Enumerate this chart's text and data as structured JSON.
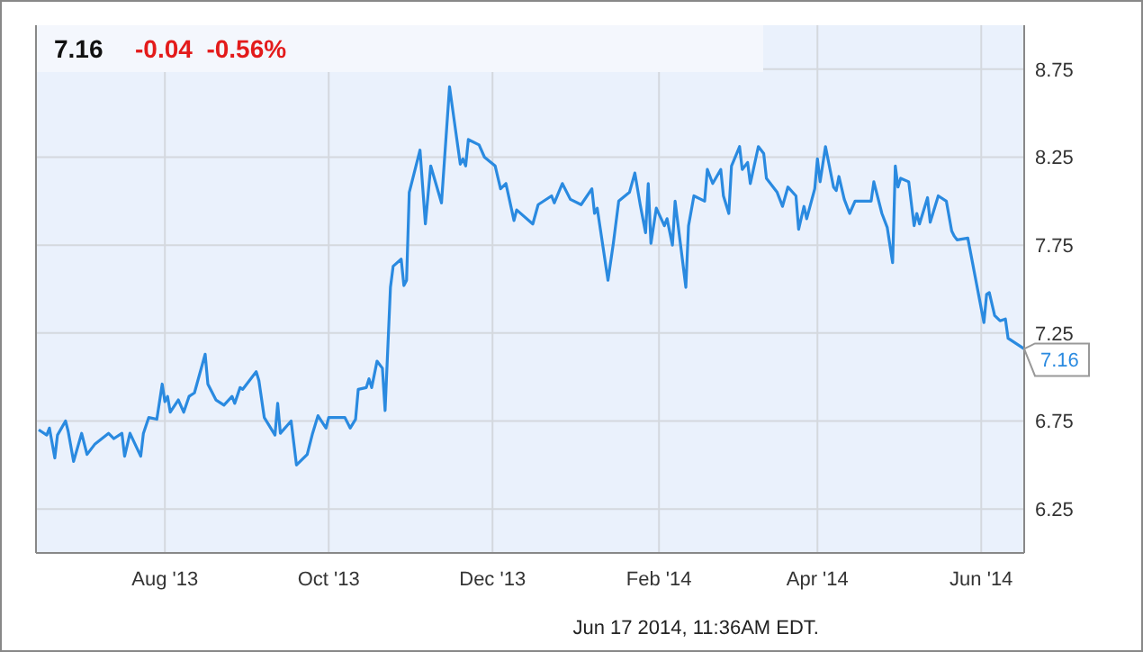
{
  "chart_data": {
    "type": "line",
    "title": "7.16",
    "subtitle": "-0.04  -0.56%",
    "annotations": [
      {
        "text": "7.16",
        "x": "2014-06-17",
        "y": 7.16
      },
      "Jun 17 2014, 11:36AM EDT."
    ],
    "x": [
      "2013-06-15",
      "2013-06-18",
      "2013-06-19",
      "2013-06-21",
      "2013-06-22",
      "2013-06-25",
      "2013-06-26",
      "2013-06-28",
      "2013-07-01",
      "2013-07-03",
      "2013-07-06",
      "2013-07-11",
      "2013-07-13",
      "2013-07-16",
      "2013-07-17",
      "2013-07-19",
      "2013-07-23",
      "2013-07-24",
      "2013-07-26",
      "2013-07-29",
      "2013-07-31",
      "2013-08-01",
      "2013-08-02",
      "2013-08-03",
      "2013-08-06",
      "2013-08-08",
      "2013-08-10",
      "2013-08-12",
      "2013-08-16",
      "2013-08-17",
      "2013-08-20",
      "2013-08-23",
      "2013-08-26",
      "2013-08-27",
      "2013-08-29",
      "2013-08-30",
      "2013-09-04",
      "2013-09-05",
      "2013-09-07",
      "2013-09-11",
      "2013-09-12",
      "2013-09-13",
      "2013-09-17",
      "2013-09-19",
      "2013-09-23",
      "2013-09-25",
      "2013-09-27",
      "2013-09-30",
      "2013-10-01",
      "2013-10-07",
      "2013-10-09",
      "2013-10-11",
      "2013-10-12",
      "2013-10-15",
      "2013-10-16",
      "2013-10-17",
      "2013-10-19",
      "2013-10-21",
      "2013-10-22",
      "2013-10-24",
      "2013-10-25",
      "2013-10-28",
      "2013-10-29",
      "2013-10-30",
      "2013-10-31",
      "2013-11-04",
      "2013-11-06",
      "2013-11-08",
      "2013-11-12",
      "2013-11-15",
      "2013-11-19",
      "2013-11-20",
      "2013-11-21",
      "2013-11-22",
      "2013-11-26",
      "2013-11-28",
      "2013-12-02",
      "2013-12-04",
      "2013-12-06",
      "2013-12-09",
      "2013-12-10",
      "2013-12-16",
      "2013-12-18",
      "2013-12-23",
      "2013-12-24",
      "2013-12-27",
      "2013-12-30",
      "2014-01-03",
      "2014-01-07",
      "2014-01-08",
      "2014-01-09",
      "2014-01-13",
      "2014-01-15",
      "2014-01-17",
      "2014-01-21",
      "2014-01-23",
      "2014-01-25",
      "2014-01-27",
      "2014-01-28",
      "2014-01-29",
      "2014-01-31",
      "2014-02-03",
      "2014-02-04",
      "2014-02-06",
      "2014-02-07",
      "2014-02-11",
      "2014-02-12",
      "2014-02-14",
      "2014-02-18",
      "2014-02-19",
      "2014-02-21",
      "2014-02-24",
      "2014-02-25",
      "2014-02-27",
      "2014-02-28",
      "2014-03-03",
      "2014-03-04",
      "2014-03-06",
      "2014-03-07",
      "2014-03-10",
      "2014-03-12",
      "2014-03-13",
      "2014-03-17",
      "2014-03-19",
      "2014-03-21",
      "2014-03-24",
      "2014-03-25",
      "2014-03-27",
      "2014-03-28",
      "2014-03-31",
      "2014-04-01",
      "2014-04-02",
      "2014-04-04",
      "2014-04-07",
      "2014-04-08",
      "2014-04-09",
      "2014-04-11",
      "2014-04-13",
      "2014-04-15",
      "2014-04-21",
      "2014-04-22",
      "2014-04-25",
      "2014-04-27",
      "2014-04-29",
      "2014-04-30",
      "2014-05-01",
      "2014-05-02",
      "2014-05-05",
      "2014-05-07",
      "2014-05-08",
      "2014-05-09",
      "2014-05-12",
      "2014-05-13",
      "2014-05-14",
      "2014-05-16",
      "2014-05-19",
      "2014-05-21",
      "2014-05-22",
      "2014-05-23",
      "2014-05-27",
      "2014-06-02",
      "2014-06-03",
      "2014-06-04",
      "2014-06-06",
      "2014-06-08",
      "2014-06-10",
      "2014-06-11",
      "2014-06-17"
    ],
    "series": [
      {
        "color": "#2a8ae0",
        "values": [
          6.7,
          6.67,
          6.71,
          6.54,
          6.67,
          6.75,
          6.69,
          6.52,
          6.68,
          6.56,
          6.62,
          6.68,
          6.65,
          6.68,
          6.55,
          6.68,
          6.55,
          6.68,
          6.77,
          6.76,
          6.96,
          6.86,
          6.89,
          6.8,
          6.87,
          6.8,
          6.89,
          6.91,
          7.13,
          6.96,
          6.87,
          6.84,
          6.89,
          6.85,
          6.94,
          6.93,
          7.03,
          6.98,
          6.77,
          6.67,
          6.85,
          6.68,
          6.75,
          6.5,
          6.56,
          6.68,
          6.78,
          6.71,
          6.77,
          6.77,
          6.71,
          6.76,
          6.93,
          6.94,
          6.99,
          6.94,
          7.09,
          7.05,
          6.81,
          7.51,
          7.63,
          7.67,
          7.52,
          7.55,
          8.05,
          8.29,
          7.87,
          8.2,
          7.99,
          8.65,
          8.21,
          8.24,
          8.2,
          8.35,
          8.32,
          8.25,
          8.2,
          8.07,
          8.1,
          7.89,
          7.95,
          7.87,
          7.98,
          8.03,
          7.99,
          8.1,
          8.01,
          7.98,
          8.07,
          7.93,
          7.96,
          7.55,
          7.76,
          8.0,
          8.05,
          8.16,
          7.98,
          7.82,
          8.1,
          7.76,
          7.96,
          7.86,
          7.9,
          7.75,
          8.0,
          7.51,
          7.86,
          8.03,
          8.0,
          8.18,
          8.1,
          8.18,
          8.03,
          7.93,
          8.2,
          8.31,
          8.18,
          8.22,
          8.1,
          8.31,
          8.27,
          8.13,
          8.05,
          7.97,
          8.08,
          8.03,
          7.84,
          7.97,
          7.9,
          8.07,
          8.24,
          8.11,
          8.31,
          8.08,
          8.06,
          8.14,
          8.01,
          7.93,
          8.0,
          8.0,
          8.11,
          7.93,
          7.85,
          7.65,
          8.2,
          8.08,
          8.13,
          8.11,
          7.86,
          7.93,
          7.87,
          8.02,
          7.88,
          7.93,
          8.03,
          8.0,
          7.83,
          7.8,
          7.78,
          7.79,
          7.31,
          7.47,
          7.48,
          7.35,
          7.32,
          7.33,
          7.22,
          7.16
        ]
      }
    ],
    "xlim": [
      "2013-06-14",
      "2014-06-17"
    ],
    "xticks": [
      {
        "value": "2013-08-01",
        "label": "Aug '13"
      },
      {
        "value": "2013-10-01",
        "label": "Oct '13"
      },
      {
        "value": "2013-12-01",
        "label": "Dec '13"
      },
      {
        "value": "2014-02-01",
        "label": "Feb '14"
      },
      {
        "value": "2014-04-01",
        "label": "Apr '14"
      },
      {
        "value": "2014-06-01",
        "label": "Jun '14"
      }
    ],
    "ylim": [
      6.0,
      9.0
    ],
    "yticks": [
      6.25,
      6.75,
      7.25,
      7.75,
      8.25,
      8.75
    ],
    "grid": true,
    "marker": "none",
    "line_style": "solid"
  }
}
